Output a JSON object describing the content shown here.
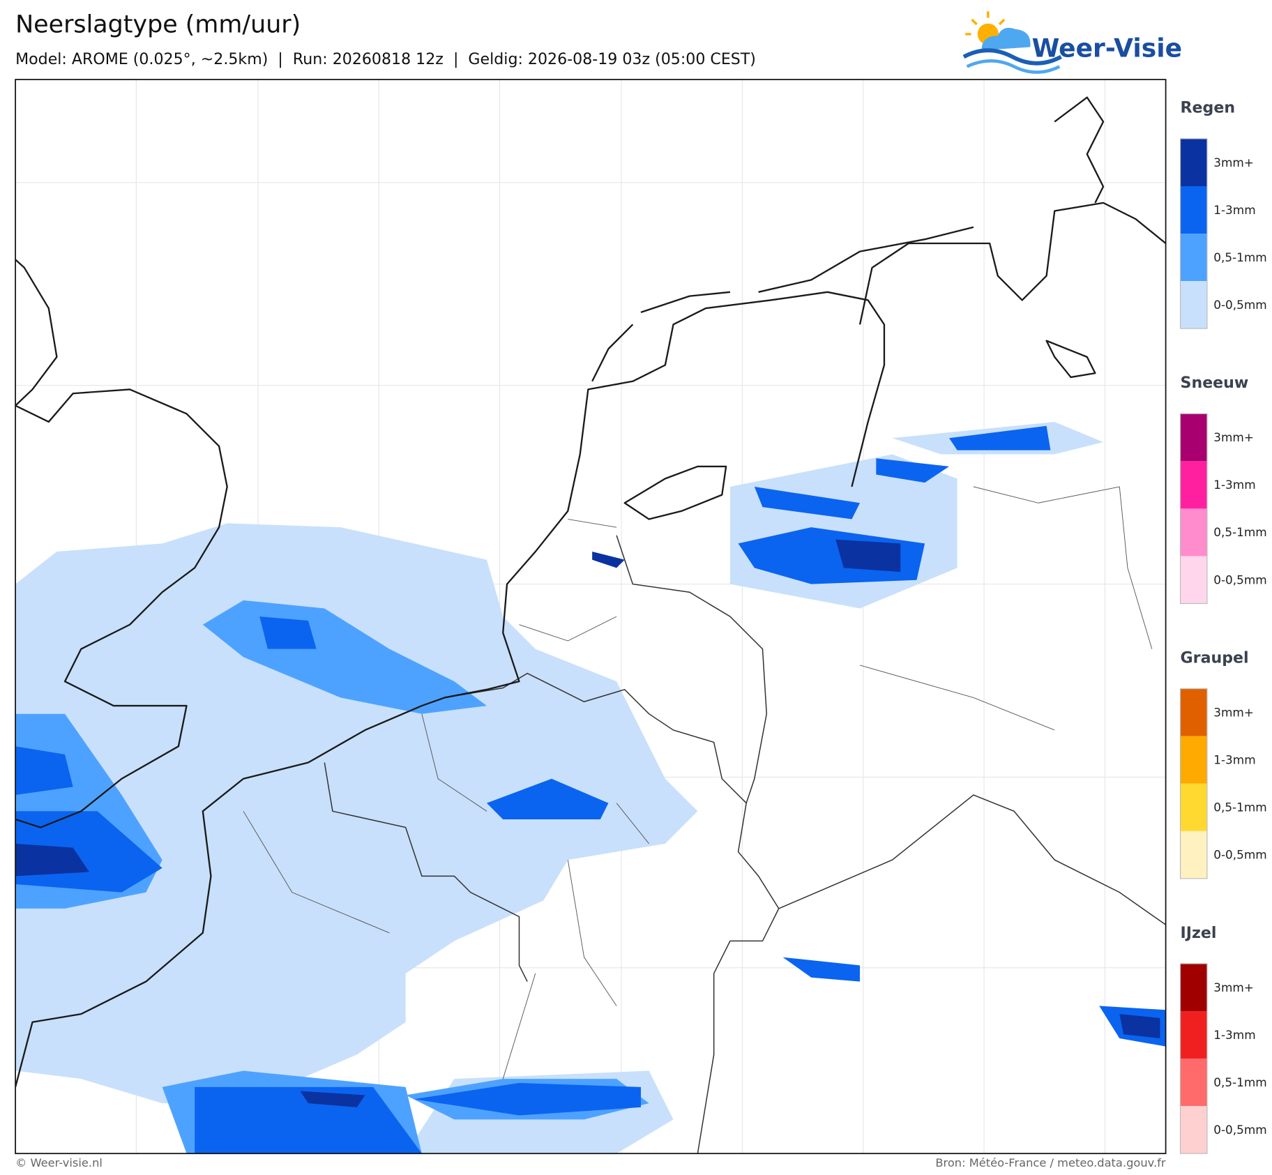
{
  "header": {
    "title": "Neerslagtype (mm/uur)",
    "subtitle": "Model: AROME (0.025°, ~2.5km)  |  Run: 20260818 12z  |  Geldig: 2026-08-19 03z (05:00 CEST)",
    "logo": "Weer-Visie"
  },
  "legend": [
    {
      "title": "Regen",
      "items": [
        {
          "label": "3mm+",
          "color": "#0a32a0"
        },
        {
          "label": "1-3mm",
          "color": "#0a64f0"
        },
        {
          "label": "0,5-1mm",
          "color": "#4ea2ff"
        },
        {
          "label": "0-0,5mm",
          "color": "#c8e0fb"
        }
      ]
    },
    {
      "title": "Sneeuw",
      "items": [
        {
          "label": "3mm+",
          "color": "#a8006e"
        },
        {
          "label": "1-3mm",
          "color": "#ff20a0"
        },
        {
          "label": "0,5-1mm",
          "color": "#ff8ccc"
        },
        {
          "label": "0-0,5mm",
          "color": "#ffd6ec"
        }
      ]
    },
    {
      "title": "Graupel",
      "items": [
        {
          "label": "3mm+",
          "color": "#e06000"
        },
        {
          "label": "1-3mm",
          "color": "#ffaa00"
        },
        {
          "label": "0,5-1mm",
          "color": "#ffd830"
        },
        {
          "label": "0-0,5mm",
          "color": "#fff2c0"
        }
      ]
    },
    {
      "title": "IJzel",
      "items": [
        {
          "label": "3mm+",
          "color": "#a00000"
        },
        {
          "label": "1-3mm",
          "color": "#f02020"
        },
        {
          "label": "0,5-1mm",
          "color": "#ff6a6a"
        },
        {
          "label": "0-0,5mm",
          "color": "#ffd0d0"
        }
      ]
    }
  ],
  "footer": {
    "left": "© Weer-visie.nl",
    "right": "Bron: Météo-France / meteo.data.gouv.fr"
  }
}
